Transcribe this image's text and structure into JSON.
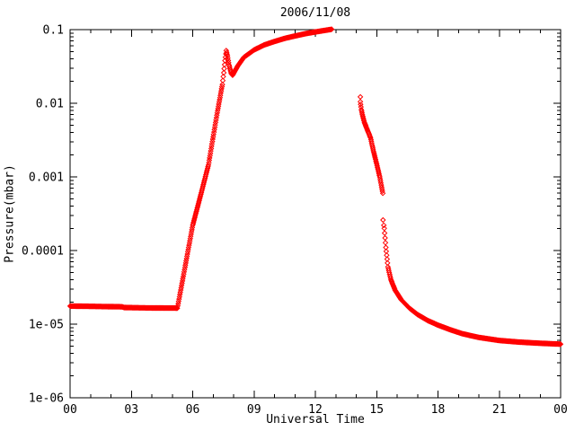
{
  "colors": {
    "background": "#ffffff",
    "frame": "#000000",
    "series": "#ff0000",
    "text": "#000000"
  },
  "chart_data": {
    "type": "scatter",
    "title": "2006/11/08",
    "xlabel": "Universal Time",
    "ylabel": "Pressure(mbar)",
    "x_axis": {
      "unit": "hours",
      "min": 0,
      "max": 24,
      "minor_step_hours": 1
    },
    "y_axis": {
      "scale": "log",
      "min": 1e-06,
      "max": 0.1,
      "minor_ticks": "log-mantissa-2-9"
    },
    "x_ticks": [
      {
        "t": 0,
        "label": "00"
      },
      {
        "t": 3,
        "label": "03"
      },
      {
        "t": 6,
        "label": "06"
      },
      {
        "t": 9,
        "label": "09"
      },
      {
        "t": 12,
        "label": "12"
      },
      {
        "t": 15,
        "label": "15"
      },
      {
        "t": 18,
        "label": "18"
      },
      {
        "t": 21,
        "label": "21"
      },
      {
        "t": 24,
        "label": "00"
      }
    ],
    "y_ticks": [
      {
        "value": 0.1,
        "label": "0.1"
      },
      {
        "value": 0.01,
        "label": "0.01"
      },
      {
        "value": 0.001,
        "label": "0.001"
      },
      {
        "value": 0.0001,
        "label": "0.0001"
      },
      {
        "value": 1e-05,
        "label": "1e-05"
      },
      {
        "value": 1e-06,
        "label": "1e-06"
      }
    ],
    "marker": {
      "shape": "diamond-hollow",
      "color": "#ff0000",
      "size": 5
    },
    "sample_step_hours": 0.02,
    "series": [
      {
        "name": "baseline-rise-spike-plateau",
        "mode": "dense",
        "anchors": [
          [
            0.0,
            1.76e-05
          ],
          [
            1.3,
            1.74e-05
          ],
          [
            2.55,
            1.72e-05
          ],
          [
            2.65,
            1.68e-05
          ],
          [
            4.0,
            1.66e-05
          ],
          [
            5.25,
            1.65e-05
          ],
          [
            5.6,
            5.5e-05
          ],
          [
            6.0,
            0.00022
          ],
          [
            6.4,
            0.00058
          ],
          [
            6.77,
            0.00145
          ],
          [
            7.0,
            0.0035
          ],
          [
            7.2,
            0.0074
          ],
          [
            7.45,
            0.018
          ],
          [
            7.52,
            0.026
          ],
          [
            7.58,
            0.038
          ],
          [
            7.64,
            0.052
          ],
          [
            7.7,
            0.044
          ],
          [
            7.78,
            0.033
          ],
          [
            7.88,
            0.0255
          ],
          [
            7.95,
            0.024
          ],
          [
            8.05,
            0.027
          ],
          [
            8.2,
            0.032
          ],
          [
            8.5,
            0.042
          ],
          [
            9.0,
            0.053
          ],
          [
            9.5,
            0.062
          ],
          [
            10.0,
            0.069
          ],
          [
            10.5,
            0.076
          ],
          [
            11.0,
            0.082
          ],
          [
            11.5,
            0.088
          ],
          [
            12.0,
            0.093
          ],
          [
            12.4,
            0.097
          ],
          [
            12.8,
            0.101
          ]
        ]
      },
      {
        "name": "afternoon-drop",
        "mode": "dense",
        "anchors": [
          [
            14.2,
            0.0105
          ],
          [
            14.25,
            0.0082
          ],
          [
            14.3,
            0.007
          ],
          [
            14.4,
            0.0055
          ],
          [
            14.55,
            0.0043
          ],
          [
            14.7,
            0.0034
          ],
          [
            14.85,
            0.0022
          ],
          [
            15.0,
            0.0015
          ],
          [
            15.15,
            0.001
          ],
          [
            15.3,
            0.0006
          ]
        ]
      },
      {
        "name": "isolated-points",
        "mode": "points",
        "points": [
          [
            14.2,
            0.0122
          ],
          [
            15.31,
            0.00026
          ],
          [
            15.35,
            0.00022
          ]
        ]
      },
      {
        "name": "evening-decay",
        "mode": "dense",
        "anchors": [
          [
            15.37,
            0.0002
          ],
          [
            15.45,
            0.00011
          ],
          [
            15.55,
            6e-05
          ],
          [
            15.7,
            4e-05
          ],
          [
            15.9,
            2.9e-05
          ],
          [
            16.2,
            2.15e-05
          ],
          [
            16.6,
            1.65e-05
          ],
          [
            17.0,
            1.35e-05
          ],
          [
            17.5,
            1.12e-05
          ],
          [
            18.0,
            9.7e-06
          ],
          [
            18.6,
            8.4e-06
          ],
          [
            19.2,
            7.4e-06
          ],
          [
            20.0,
            6.6e-06
          ],
          [
            21.0,
            6e-06
          ],
          [
            22.0,
            5.7e-06
          ],
          [
            23.0,
            5.5e-06
          ],
          [
            24.0,
            5.35e-06
          ]
        ]
      }
    ]
  }
}
